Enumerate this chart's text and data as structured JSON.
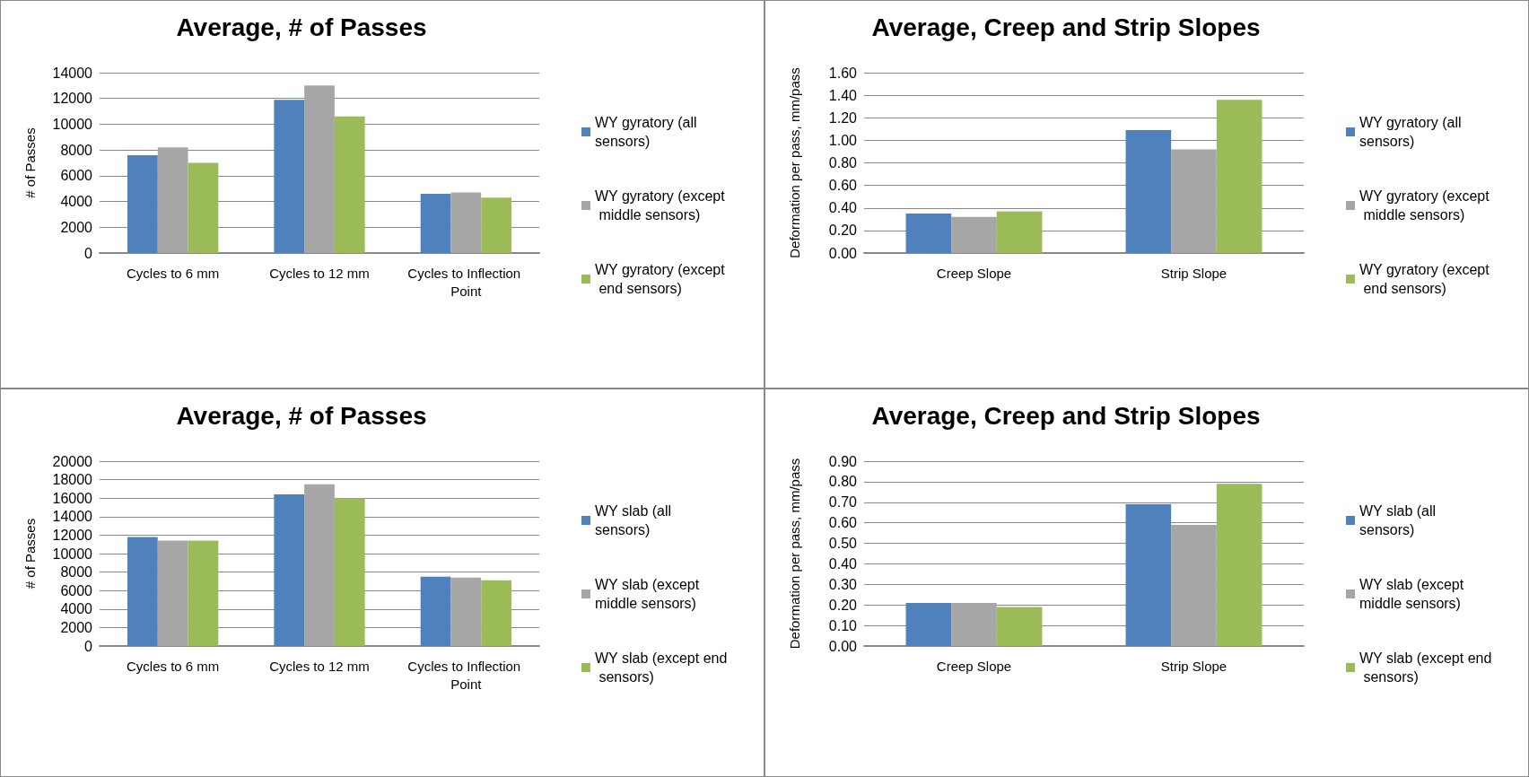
{
  "chart_data": [
    {
      "type": "bar",
      "title": "Average, # of Passes",
      "ylabel": "# of Passes",
      "categories": [
        "Cycles to 6 mm",
        "Cycles to 12 mm",
        "Cycles to Inflection Point"
      ],
      "series": [
        {
          "name": "WY gyratory (all sensors)",
          "color": "#4f81bd",
          "values": [
            7600,
            11900,
            4600
          ]
        },
        {
          "name": "WY gyratory (except middle sensors)",
          "color": "#a6a6a6",
          "values": [
            8200,
            13000,
            4700
          ]
        },
        {
          "name": "WY gyratory (except end sensors)",
          "color": "#9bbb59",
          "values": [
            7000,
            10600,
            4300
          ]
        }
      ],
      "ylim": [
        0,
        14000
      ],
      "yticks": [
        0,
        2000,
        4000,
        6000,
        8000,
        10000,
        12000,
        14000
      ],
      "grid": "y",
      "legend": "right"
    },
    {
      "type": "bar",
      "title": "Average, Creep and Strip Slopes",
      "ylabel": "Deformation per pass, mm/pass",
      "categories": [
        "Creep Slope",
        "Strip Slope"
      ],
      "series": [
        {
          "name": "WY gyratory (all sensors)",
          "color": "#4f81bd",
          "values": [
            0.35,
            1.09
          ]
        },
        {
          "name": "WY gyratory (except middle sensors)",
          "color": "#a6a6a6",
          "values": [
            0.32,
            0.92
          ]
        },
        {
          "name": "WY gyratory (except end sensors)",
          "color": "#9bbb59",
          "values": [
            0.37,
            1.36
          ]
        }
      ],
      "ylim": [
        0,
        1.6
      ],
      "yticks": [
        {
          "value": 0,
          "label": "0.00"
        },
        {
          "value": 0.2,
          "label": "0.20"
        },
        {
          "value": 0.4,
          "label": "0.40"
        },
        {
          "value": 0.6,
          "label": "0.60"
        },
        {
          "value": 0.8,
          "label": "0.80"
        },
        {
          "value": 1,
          "label": "1.00"
        },
        {
          "value": 1.2,
          "label": "1.20"
        },
        {
          "value": 1.4,
          "label": "1.40"
        },
        {
          "value": 1.6,
          "label": "1.60"
        }
      ],
      "grid": "y",
      "legend": "right"
    },
    {
      "type": "bar",
      "title": "Average, # of Passes",
      "ylabel": "# of Passes",
      "categories": [
        "Cycles to 6 mm",
        "Cycles to 12 mm",
        "Cycles to Inflection Point"
      ],
      "series": [
        {
          "name": "WY slab (all sensors)",
          "color": "#4f81bd",
          "values": [
            11800,
            16400,
            7500
          ]
        },
        {
          "name": "WY slab (except middle sensors)",
          "color": "#a6a6a6",
          "values": [
            11400,
            17500,
            7400
          ]
        },
        {
          "name": "WY slab (except end sensors)",
          "color": "#9bbb59",
          "values": [
            11400,
            16000,
            7100
          ]
        }
      ],
      "ylim": [
        0,
        20000
      ],
      "yticks": [
        0,
        2000,
        4000,
        6000,
        8000,
        10000,
        12000,
        14000,
        16000,
        18000,
        20000
      ],
      "grid": "y",
      "legend": "right"
    },
    {
      "type": "bar",
      "title": "Average, Creep and Strip Slopes",
      "ylabel": "Deformation per pass, mm/pass",
      "categories": [
        "Creep Slope",
        "Strip Slope"
      ],
      "series": [
        {
          "name": "WY slab (all sensors)",
          "color": "#4f81bd",
          "values": [
            0.21,
            0.69
          ]
        },
        {
          "name": "WY slab (except middle sensors)",
          "color": "#a6a6a6",
          "values": [
            0.21,
            0.59
          ]
        },
        {
          "name": "WY slab (except end sensors)",
          "color": "#9bbb59",
          "values": [
            0.19,
            0.79
          ]
        }
      ],
      "ylim": [
        0,
        0.9
      ],
      "yticks": [
        {
          "value": 0,
          "label": "0.00"
        },
        {
          "value": 0.1,
          "label": "0.10"
        },
        {
          "value": 0.2,
          "label": "0.20"
        },
        {
          "value": 0.3,
          "label": "0.30"
        },
        {
          "value": 0.4,
          "label": "0.40"
        },
        {
          "value": 0.5,
          "label": "0.50"
        },
        {
          "value": 0.6,
          "label": "0.60"
        },
        {
          "value": 0.7,
          "label": "0.70"
        },
        {
          "value": 0.8,
          "label": "0.80"
        },
        {
          "value": 0.9,
          "label": "0.90"
        }
      ],
      "grid": "y",
      "legend": "right"
    }
  ]
}
